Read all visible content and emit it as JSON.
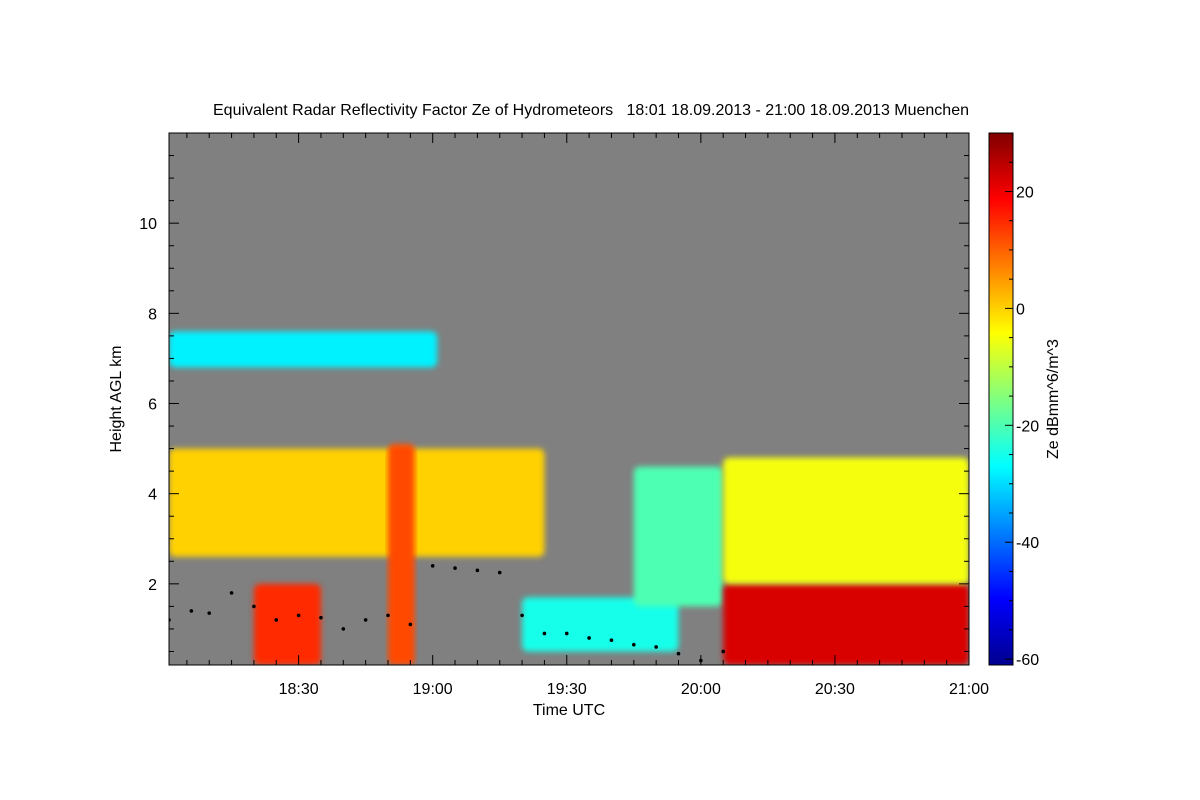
{
  "chart_data": {
    "type": "heatmap",
    "title": "Equivalent Radar Reflectivity Factor Ze of Hydrometeors   18:01 18.09.2013 - 21:00 18.09.2013 Muenchen",
    "xlabel": "Time UTC",
    "ylabel": "Height AGL km",
    "colorbar_label": "Ze dBmm^6/m^3",
    "x_ticks": [
      "18:30",
      "19:00",
      "19:30",
      "20:00",
      "20:30",
      "21:00"
    ],
    "y_ticks": [
      "2",
      "4",
      "6",
      "8",
      "10"
    ],
    "colorbar_ticks": [
      "20",
      "0",
      "-20",
      "-40",
      "-60"
    ],
    "xlim": [
      "18:01",
      "21:00"
    ],
    "ylim": [
      0.2,
      12
    ],
    "clim": [
      -61,
      30
    ],
    "colormap": "jet",
    "background_color": "#808080",
    "echo_layers": [
      {
        "start": "18:01",
        "end": "19:01",
        "base_km": 6.8,
        "top_km": 7.6,
        "ze_dbz": -28
      },
      {
        "start": "18:01",
        "end": "19:25",
        "base_km": 2.6,
        "top_km": 5.0,
        "ze_dbz": 0
      },
      {
        "start": "18:20",
        "end": "18:35",
        "base_km": 0.2,
        "top_km": 2.0,
        "ze_dbz": 15
      },
      {
        "start": "18:50",
        "end": "18:56",
        "base_km": 0.2,
        "top_km": 5.1,
        "ze_dbz": 12
      },
      {
        "start": "19:20",
        "end": "19:55",
        "base_km": 0.5,
        "top_km": 1.7,
        "ze_dbz": -25
      },
      {
        "start": "19:45",
        "end": "20:05",
        "base_km": 1.5,
        "top_km": 4.6,
        "ze_dbz": -20
      },
      {
        "start": "20:05",
        "end": "21:00",
        "base_km": 0.2,
        "top_km": 2.0,
        "ze_dbz": 22
      },
      {
        "start": "20:05",
        "end": "21:00",
        "base_km": 2.0,
        "top_km": 4.8,
        "ze_dbz": -5
      }
    ],
    "cloud_base_points": [
      {
        "t": "18:01",
        "h": 1.2
      },
      {
        "t": "18:06",
        "h": 1.4
      },
      {
        "t": "18:10",
        "h": 1.35
      },
      {
        "t": "18:15",
        "h": 1.8
      },
      {
        "t": "18:20",
        "h": 1.5
      },
      {
        "t": "18:25",
        "h": 1.2
      },
      {
        "t": "18:30",
        "h": 1.3
      },
      {
        "t": "18:35",
        "h": 1.25
      },
      {
        "t": "18:40",
        "h": 1.0
      },
      {
        "t": "18:45",
        "h": 1.2
      },
      {
        "t": "18:50",
        "h": 1.3
      },
      {
        "t": "18:55",
        "h": 1.1
      },
      {
        "t": "19:00",
        "h": 2.4
      },
      {
        "t": "19:05",
        "h": 2.35
      },
      {
        "t": "19:10",
        "h": 2.3
      },
      {
        "t": "19:15",
        "h": 2.25
      },
      {
        "t": "19:20",
        "h": 1.3
      },
      {
        "t": "19:25",
        "h": 0.9
      },
      {
        "t": "19:30",
        "h": 0.9
      },
      {
        "t": "19:35",
        "h": 0.8
      },
      {
        "t": "19:40",
        "h": 0.75
      },
      {
        "t": "19:45",
        "h": 0.65
      },
      {
        "t": "19:50",
        "h": 0.6
      },
      {
        "t": "19:55",
        "h": 0.45
      },
      {
        "t": "20:00",
        "h": 0.3
      },
      {
        "t": "20:05",
        "h": 0.5
      }
    ]
  }
}
